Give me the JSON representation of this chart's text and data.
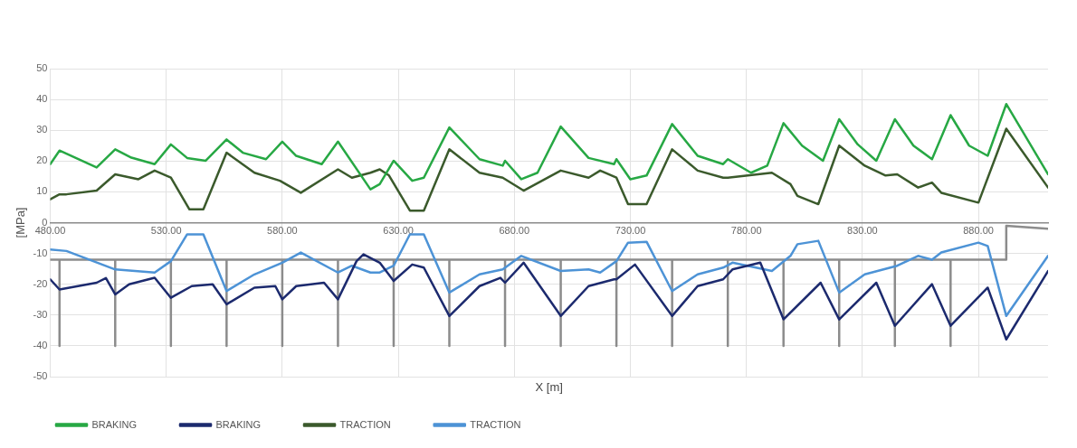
{
  "chart_data": {
    "type": "line",
    "xlabel": "X [m]",
    "ylabel": "[MPa]",
    "xlim": [
      480,
      910
    ],
    "xticks": [
      {
        "value": 480,
        "label": "480.00"
      },
      {
        "value": 530,
        "label": "530.00"
      },
      {
        "value": 580,
        "label": "580.00"
      },
      {
        "value": 630,
        "label": "630.00"
      },
      {
        "value": 680,
        "label": "680.00"
      },
      {
        "value": 730,
        "label": "730.00"
      },
      {
        "value": 780,
        "label": "780.00"
      },
      {
        "value": 830,
        "label": "830.00"
      },
      {
        "value": 880,
        "label": "880.00"
      }
    ],
    "ylim": [
      -50,
      50
    ],
    "yticks": [
      -50,
      -40,
      -30,
      -20,
      -10,
      0,
      10,
      20,
      30,
      40,
      50
    ],
    "grid": true,
    "legend": "bottom",
    "marker": "none",
    "line_style": "solid",
    "series": [
      {
        "name": "BRAKING",
        "color": "#27a844",
        "x": [
          480,
          484,
          500,
          508,
          515,
          525,
          532,
          539,
          547,
          556,
          563,
          573,
          580,
          586,
          597,
          604,
          618,
          622,
          628,
          636,
          641,
          652,
          665,
          675,
          676,
          683,
          690,
          700,
          712,
          723,
          724,
          730,
          737,
          748,
          759,
          770,
          772,
          782,
          789,
          796,
          804,
          813,
          820,
          828,
          836,
          844,
          852,
          860,
          868,
          876,
          884,
          892,
          910
        ],
        "values": [
          19,
          23.4,
          17.9,
          23.8,
          21.1,
          19,
          25.4,
          21,
          20.1,
          27,
          22.7,
          20.6,
          26.3,
          21.7,
          19,
          26.3,
          10.8,
          12.5,
          20.1,
          13.6,
          14.6,
          30.9,
          20.6,
          18.5,
          20.1,
          14.1,
          16.2,
          31.2,
          21,
          19,
          20.6,
          14.1,
          15.3,
          32,
          21.7,
          19,
          20.6,
          16.2,
          18.5,
          32.3,
          25,
          20.1,
          33.6,
          25.4,
          20.1,
          33.6,
          25,
          20.6,
          34.9,
          25,
          21.7,
          38.5,
          15.7
        ]
      },
      {
        "name": "BRAKING",
        "color": "#1c2a6e",
        "x": [
          480,
          484,
          500,
          504,
          508,
          514,
          525,
          532,
          541,
          550,
          556,
          568,
          577,
          580,
          586,
          598,
          604,
          612,
          615,
          622,
          628,
          636,
          641,
          652,
          665,
          674,
          676,
          684,
          700,
          712,
          723,
          724,
          732,
          748,
          759,
          770,
          774,
          786,
          796,
          812,
          820,
          836,
          844,
          860,
          868,
          884,
          892,
          910
        ],
        "values": [
          -18.4,
          -21.7,
          -19.5,
          -18,
          -23.3,
          -20,
          -17.9,
          -24.4,
          -20.6,
          -20,
          -26.5,
          -21.1,
          -20.6,
          -24.9,
          -20.6,
          -19.5,
          -24.9,
          -12.5,
          -10.3,
          -13,
          -18.9,
          -13.6,
          -14.6,
          -30.3,
          -20.6,
          -17.9,
          -19.5,
          -13,
          -30.3,
          -20.6,
          -18.4,
          -18.4,
          -13.6,
          -30.3,
          -20.6,
          -18.4,
          -15.2,
          -13,
          -31.4,
          -19.5,
          -31.4,
          -19.5,
          -33.5,
          -20,
          -33.5,
          -21.1,
          -37.9,
          -15.7
        ]
      },
      {
        "name": "TRACTION",
        "color": "#3b5a2c",
        "x": [
          480,
          484,
          487,
          500,
          508,
          518,
          525,
          532,
          540,
          546,
          556,
          568,
          579,
          588,
          604,
          610,
          618,
          622,
          626,
          635,
          641,
          652,
          665,
          675,
          684,
          700,
          712,
          717,
          724,
          729,
          737,
          748,
          759,
          770,
          772,
          791,
          799,
          802,
          811,
          820,
          831,
          840,
          845,
          854,
          860,
          864,
          880,
          892,
          910
        ],
        "values": [
          7.6,
          9.2,
          9.2,
          10.4,
          15.7,
          14.1,
          16.9,
          14.6,
          4.3,
          4.3,
          22.7,
          16.2,
          13.6,
          9.7,
          17.3,
          14.6,
          16.2,
          17.3,
          15.3,
          3.9,
          3.9,
          23.8,
          16.2,
          14.6,
          10.4,
          16.9,
          14.6,
          16.9,
          14.6,
          6,
          6,
          23.8,
          16.9,
          14.6,
          14.6,
          16.2,
          12.5,
          8.7,
          6,
          25,
          18.5,
          15.3,
          15.7,
          11.4,
          13,
          9.7,
          6.5,
          30.5,
          11.4
        ]
      },
      {
        "name": "TRACTION",
        "color": "#4d93d6",
        "x": [
          480,
          487,
          508,
          525,
          532,
          539,
          546,
          556,
          568,
          580,
          588,
          604,
          610,
          618,
          622,
          628,
          635,
          641,
          652,
          665,
          675,
          683,
          700,
          712,
          717,
          724,
          729,
          737,
          748,
          759,
          770,
          774,
          791,
          799,
          802,
          811,
          820,
          831,
          845,
          854,
          860,
          864,
          880,
          884,
          892,
          910
        ],
        "values": [
          -8.7,
          -9.2,
          -15.2,
          -16.2,
          -12.5,
          -3.8,
          -3.8,
          -22.2,
          -16.8,
          -13,
          -9.7,
          -16.2,
          -14,
          -16.2,
          -16.2,
          -14,
          -3.8,
          -3.8,
          -22.7,
          -16.8,
          -15.2,
          -10.8,
          -15.7,
          -15.2,
          -16.2,
          -12.5,
          -6.5,
          -6.2,
          -22.2,
          -16.8,
          -14.6,
          -13,
          -15.7,
          -10.8,
          -7,
          -5.9,
          -22.7,
          -16.8,
          -14,
          -10.8,
          -12,
          -9.7,
          -6.5,
          -7.6,
          -30.3,
          -10.8
        ]
      },
      {
        "color": "#8c8c8c",
        "x": [
          480,
          484,
          484,
          484,
          508,
          508,
          508,
          532,
          532,
          532,
          556,
          556,
          556,
          580,
          580,
          580,
          604,
          604,
          604,
          628,
          628,
          628,
          652,
          652,
          652,
          676,
          676,
          676,
          700,
          700,
          700,
          724,
          724,
          724,
          748,
          748,
          748,
          772,
          772,
          772,
          796,
          796,
          796,
          820,
          820,
          820,
          844,
          844,
          844,
          868,
          868,
          868,
          892,
          892,
          910
        ],
        "values": [
          -12,
          -12,
          -40,
          -12,
          -12,
          -40,
          -12,
          -12,
          -40,
          -12,
          -12,
          -40,
          -12,
          -12,
          -40,
          -12,
          -12,
          -40,
          -12,
          -12,
          -40,
          -12,
          -12,
          -40,
          -12,
          -12,
          -40,
          -12,
          -12,
          -40,
          -12,
          -12,
          -40,
          -12,
          -12,
          -40,
          -12,
          -12,
          -40,
          -12,
          -12,
          -40,
          -12,
          -12,
          -40,
          -12,
          -12,
          -40,
          -12,
          -12,
          -40,
          -12,
          -12,
          -1,
          -2
        ]
      }
    ]
  }
}
